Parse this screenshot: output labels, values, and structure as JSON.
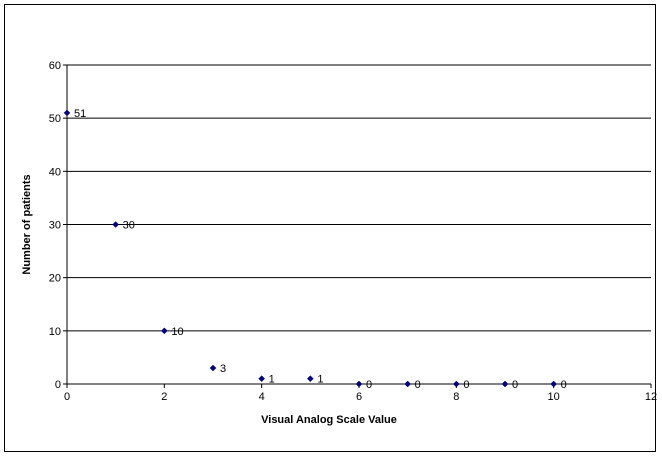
{
  "chart_data": {
    "type": "scatter",
    "title": "",
    "xlabel": "Visual Analog Scale Value",
    "ylabel": "Number of patients",
    "xlim": [
      0,
      12
    ],
    "ylim": [
      0,
      60
    ],
    "x_ticks": [
      0,
      2,
      4,
      6,
      8,
      10,
      12
    ],
    "y_ticks": [
      0,
      10,
      20,
      30,
      40,
      50,
      60
    ],
    "grid": "horizontal major gridlines",
    "legend": "none",
    "series": [
      {
        "color": "#000080",
        "marker": "diamond",
        "data_labels": true,
        "points": [
          {
            "x": 0,
            "y": 51
          },
          {
            "x": 1,
            "y": 30
          },
          {
            "x": 2,
            "y": 10
          },
          {
            "x": 3,
            "y": 3
          },
          {
            "x": 4,
            "y": 1
          },
          {
            "x": 5,
            "y": 1
          },
          {
            "x": 6,
            "y": 0
          },
          {
            "x": 7,
            "y": 0
          },
          {
            "x": 8,
            "y": 0
          },
          {
            "x": 9,
            "y": 0
          },
          {
            "x": 10,
            "y": 0
          }
        ]
      }
    ]
  }
}
